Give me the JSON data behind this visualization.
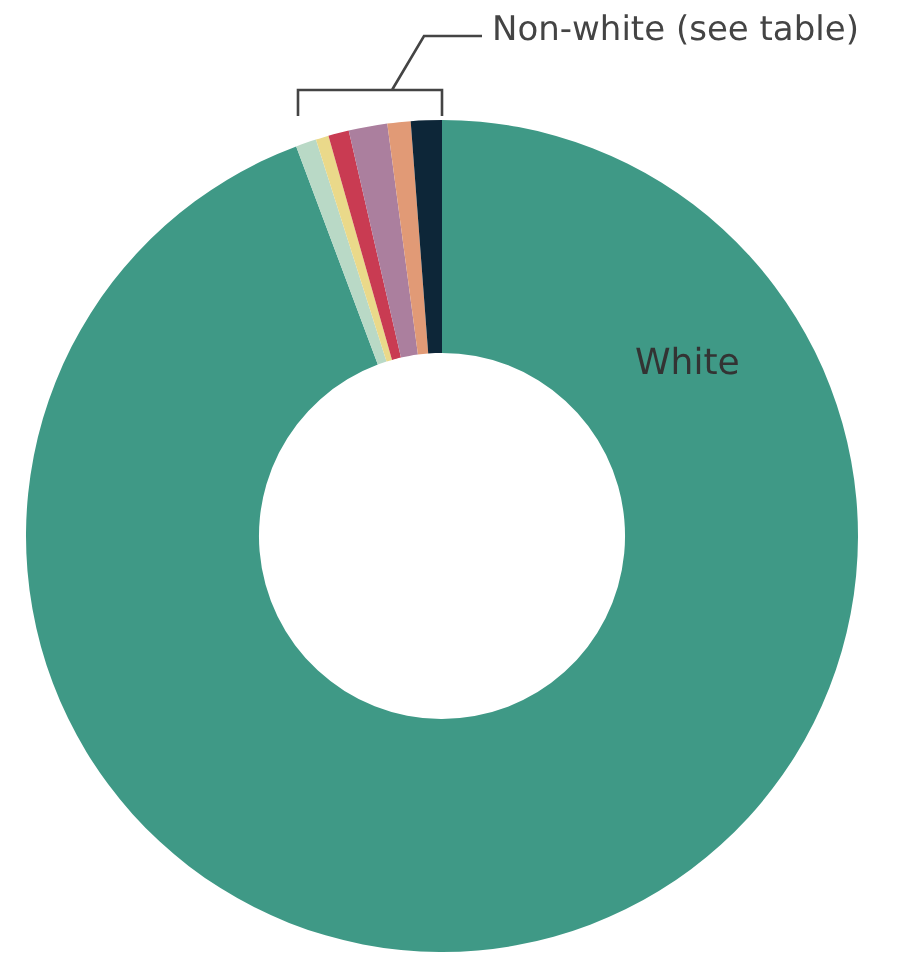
{
  "chart_data": {
    "type": "donut",
    "categories": [
      "White",
      null,
      null,
      null,
      null,
      null,
      null
    ],
    "values": [
      94.3,
      0.8,
      0.5,
      0.8,
      1.5,
      0.9,
      1.2
    ],
    "colors": [
      "#3f9986",
      "#b9d9c6",
      "#ead98a",
      "#c93b52",
      "#ab7f9e",
      "#e19a76",
      "#0d2638"
    ],
    "annotations": [
      "Non-white (see table)"
    ],
    "legend": false
  }
}
